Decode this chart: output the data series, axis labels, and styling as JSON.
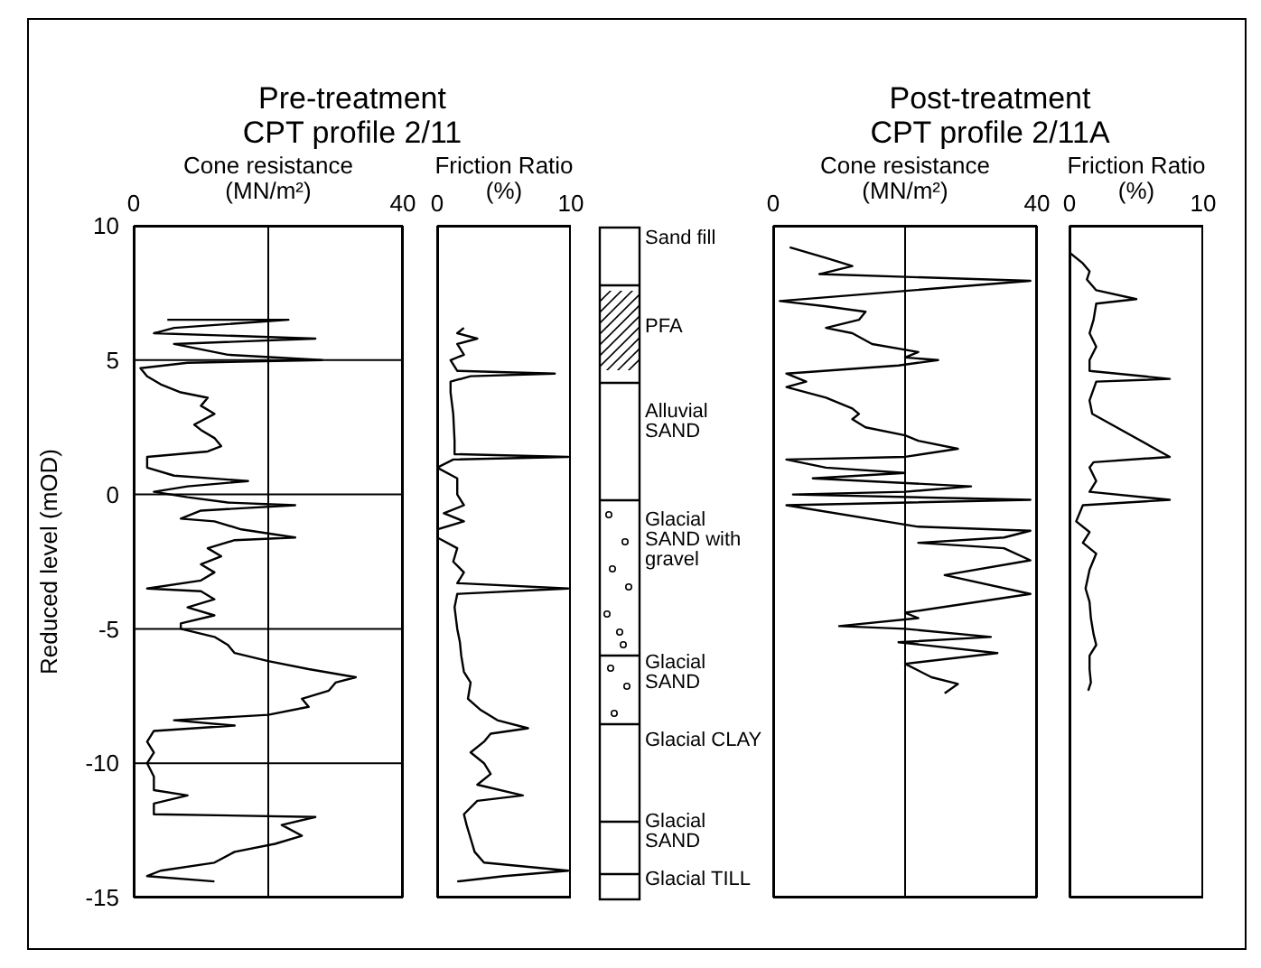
{
  "chart_data": [
    {
      "type": "line",
      "title": "Pre-treatment\nCPT profile 2/11",
      "xlabel": "Cone resistance\n(MN/m²)",
      "ylabel": "Reduced level  (mOD)",
      "xlim": [
        0,
        40
      ],
      "xticks": [
        0,
        {
          "value": 20,
          "label": null
        },
        40
      ],
      "ylim": [
        -15,
        10
      ],
      "yticks": [
        10,
        5,
        0,
        -5,
        -10,
        -15
      ],
      "grid": true,
      "series": [
        {
          "color": "#000000",
          "x": [
            5,
            23,
            6,
            3,
            27,
            6,
            14,
            28,
            8,
            1,
            2,
            4,
            7,
            11,
            10,
            12,
            9,
            10,
            12,
            13,
            11,
            2,
            2,
            6,
            17,
            8,
            3,
            8,
            14,
            24,
            10,
            7,
            12,
            16,
            24,
            15,
            11,
            13,
            10,
            12,
            10,
            2,
            10,
            12,
            8,
            12,
            7,
            7,
            12,
            14,
            15,
            20,
            26,
            33,
            30,
            29,
            25,
            26,
            20,
            6,
            15,
            3,
            2,
            3,
            2,
            3,
            3,
            8,
            3,
            3,
            27,
            22,
            25,
            21,
            15,
            12,
            4,
            2,
            12
          ],
          "values": [
            6.5,
            6.5,
            6.2,
            6.0,
            5.8,
            5.6,
            5.2,
            5.0,
            4.9,
            4.7,
            4.4,
            4.1,
            3.8,
            3.6,
            3.3,
            3.0,
            2.6,
            2.4,
            2.1,
            1.8,
            1.6,
            1.4,
            1.0,
            0.7,
            0.5,
            0.3,
            0.1,
            -0.1,
            -0.3,
            -0.4,
            -0.6,
            -0.9,
            -1.0,
            -1.3,
            -1.6,
            -1.7,
            -2.0,
            -2.3,
            -2.6,
            -2.9,
            -3.2,
            -3.5,
            -3.6,
            -3.9,
            -4.2,
            -4.5,
            -4.8,
            -5.0,
            -5.3,
            -5.6,
            -5.9,
            -6.2,
            -6.5,
            -6.8,
            -7.0,
            -7.3,
            -7.6,
            -7.9,
            -8.2,
            -8.4,
            -8.6,
            -8.8,
            -9.2,
            -9.6,
            -10.0,
            -10.5,
            -11.0,
            -11.2,
            -11.5,
            -11.9,
            -12.0,
            -12.3,
            -12.7,
            -13.0,
            -13.3,
            -13.7,
            -14.0,
            -14.2,
            -14.4
          ]
        }
      ]
    },
    {
      "type": "line",
      "xlabel": "Friction Ratio\n(%)",
      "xlim": [
        0,
        10
      ],
      "xticks": [
        0,
        10
      ],
      "ylim": [
        -15,
        10
      ],
      "yticks": [
        10,
        5,
        0,
        -5,
        -10,
        -15
      ],
      "grid": "y",
      "tick_labels": "x",
      "series": [
        {
          "color": "#000000",
          "x": [
            2,
            1.5,
            3,
            1.5,
            2,
            1,
            1.5,
            8.8,
            2.5,
            1,
            1,
            1.2,
            1.3,
            1.3,
            9.8,
            1.2,
            0,
            1.5,
            1.5,
            2,
            0.5,
            2,
            0,
            0,
            1.5,
            1.2,
            2,
            1.5,
            9.8,
            1.5,
            1.3,
            1.5,
            1.7,
            1.8,
            2,
            2.5,
            2.3,
            3.2,
            4.5,
            6.8,
            4,
            3.5,
            2.5,
            3.5,
            4,
            3,
            6.4,
            3,
            2,
            2.2,
            2.5,
            2.8,
            3.5,
            9.8,
            5,
            1.5
          ],
          "values": [
            6.2,
            6.0,
            5.8,
            5.6,
            5.2,
            5.0,
            4.6,
            4.5,
            4.4,
            4.2,
            3.8,
            3.0,
            2.0,
            1.5,
            1.4,
            1.3,
            1.0,
            0.6,
            0.0,
            -0.4,
            -0.7,
            -1.0,
            -1.3,
            -1.6,
            -2.0,
            -2.5,
            -2.9,
            -3.3,
            -3.5,
            -3.7,
            -4.2,
            -5.0,
            -5.5,
            -6.0,
            -6.6,
            -7.0,
            -7.6,
            -8.0,
            -8.4,
            -8.7,
            -8.9,
            -9.2,
            -9.6,
            -10.0,
            -10.4,
            -10.8,
            -11.2,
            -11.4,
            -11.9,
            -12.3,
            -12.8,
            -13.3,
            -13.7,
            -14.0,
            -14.2,
            -14.4
          ]
        }
      ]
    },
    {
      "type": "other",
      "annotations": [
        "Sand fill",
        "PFA",
        "Alluvial SAND",
        "Glacial SAND with gravel",
        "Glacial SAND",
        "Glacial CLAY",
        "Glacial SAND",
        "Glacial TILL"
      ]
    },
    {
      "type": "line",
      "title": "Post-treatment\nCPT profile 2/11A",
      "xlabel": "Cone resistance\n(MN/m²)",
      "xlim": [
        0,
        40
      ],
      "xticks": [
        0,
        {
          "value": 20,
          "label": null
        },
        40
      ],
      "ylim": [
        -15,
        10
      ],
      "yticks": [
        10,
        5,
        0,
        -5,
        -10,
        -15
      ],
      "grid": true,
      "tick_labels": "x",
      "series": [
        {
          "color": "#000000",
          "x": [
            2.5,
            8,
            12,
            7,
            39,
            1,
            8,
            14,
            13,
            8,
            12,
            15,
            22,
            20,
            25,
            19,
            2,
            5,
            2,
            8,
            12,
            13,
            12,
            14,
            20,
            22,
            28,
            20,
            2,
            8,
            20,
            6,
            30,
            20,
            3,
            39,
            2,
            22,
            39,
            35,
            22,
            35,
            39,
            26,
            39,
            20,
            22,
            10,
            20,
            33,
            19,
            34,
            20,
            24,
            28,
            26
          ],
          "values": [
            9.2,
            8.8,
            8.5,
            8.2,
            7.95,
            7.2,
            7.0,
            6.8,
            6.5,
            6.2,
            6.0,
            5.6,
            5.3,
            5.1,
            5.0,
            4.8,
            4.5,
            4.2,
            4.0,
            3.6,
            3.2,
            3.0,
            2.8,
            2.5,
            2.2,
            2.0,
            1.7,
            1.4,
            1.3,
            1.0,
            0.8,
            0.6,
            0.3,
            0.1,
            0.0,
            -0.2,
            -0.4,
            -1.2,
            -1.35,
            -1.6,
            -1.8,
            -2.0,
            -2.45,
            -3.0,
            -3.7,
            -4.4,
            -4.6,
            -4.9,
            -5.0,
            -5.3,
            -5.5,
            -5.9,
            -6.3,
            -6.8,
            -7.05,
            -7.4
          ]
        }
      ]
    },
    {
      "type": "line",
      "xlabel": "Friction Ratio\n(%)",
      "xlim": [
        0,
        10
      ],
      "xticks": [
        0,
        10
      ],
      "ylim": [
        -15,
        10
      ],
      "yticks": [
        10,
        5,
        0,
        -5,
        -10,
        -15
      ],
      "grid": "y",
      "tick_labels": "x",
      "series": [
        {
          "color": "#000000",
          "x": [
            0,
            1,
            1.5,
            1.3,
            2,
            5,
            2,
            1.8,
            1.5,
            2,
            1.5,
            1.5,
            7.5,
            2,
            1.5,
            1.7,
            7.5,
            1.8,
            1.5,
            2,
            1.5,
            7.5,
            1,
            0.5,
            1.5,
            1,
            2,
            1.5,
            1.2,
            1.5,
            1.6,
            1.8,
            2,
            1.5,
            1.5,
            1.6,
            1.4
          ],
          "values": [
            9.0,
            8.6,
            8.3,
            8.0,
            7.6,
            7.27,
            7.1,
            6.5,
            6.0,
            5.5,
            5.0,
            4.6,
            4.3,
            4.2,
            3.5,
            3.0,
            1.4,
            1.2,
            1.0,
            0.5,
            0.1,
            -0.2,
            -0.4,
            -1.0,
            -1.4,
            -1.8,
            -2.2,
            -2.8,
            -3.5,
            -4.0,
            -4.6,
            -5.2,
            -5.6,
            -6.0,
            -6.5,
            -7.0,
            -7.3
          ]
        }
      ]
    }
  ]
}
